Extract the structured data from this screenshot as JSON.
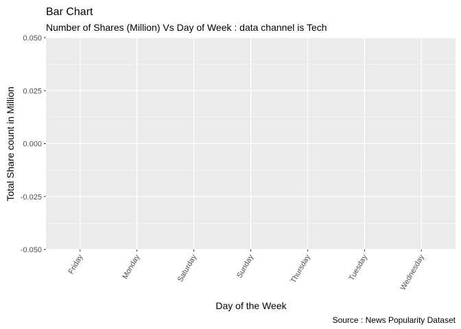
{
  "chart_data": {
    "type": "bar",
    "title": "Bar Chart",
    "subtitle": "Number of Shares (Million) Vs Day of Week : data channel is Tech",
    "x_label": "Day of the Week",
    "y_label": "Total Share count in Million",
    "caption": "Source : News Popularity Dataset",
    "categories": [
      "Friday",
      "Monday",
      "Saturday",
      "Sunday",
      "Thursday",
      "Tuesday",
      "Wednesday"
    ],
    "values": [
      0,
      0,
      0,
      0,
      0,
      0,
      0
    ],
    "color": "#595959",
    "ylim": [
      -0.05,
      0.05
    ],
    "yticks": [
      {
        "value": -0.05,
        "label": "-0.050"
      },
      {
        "value": -0.025,
        "label": "-0.025"
      },
      {
        "value": 0,
        "label": "0.000"
      },
      {
        "value": 0.025,
        "label": "0.025"
      },
      {
        "value": 0.05,
        "label": "0.050"
      }
    ],
    "grid": true
  }
}
